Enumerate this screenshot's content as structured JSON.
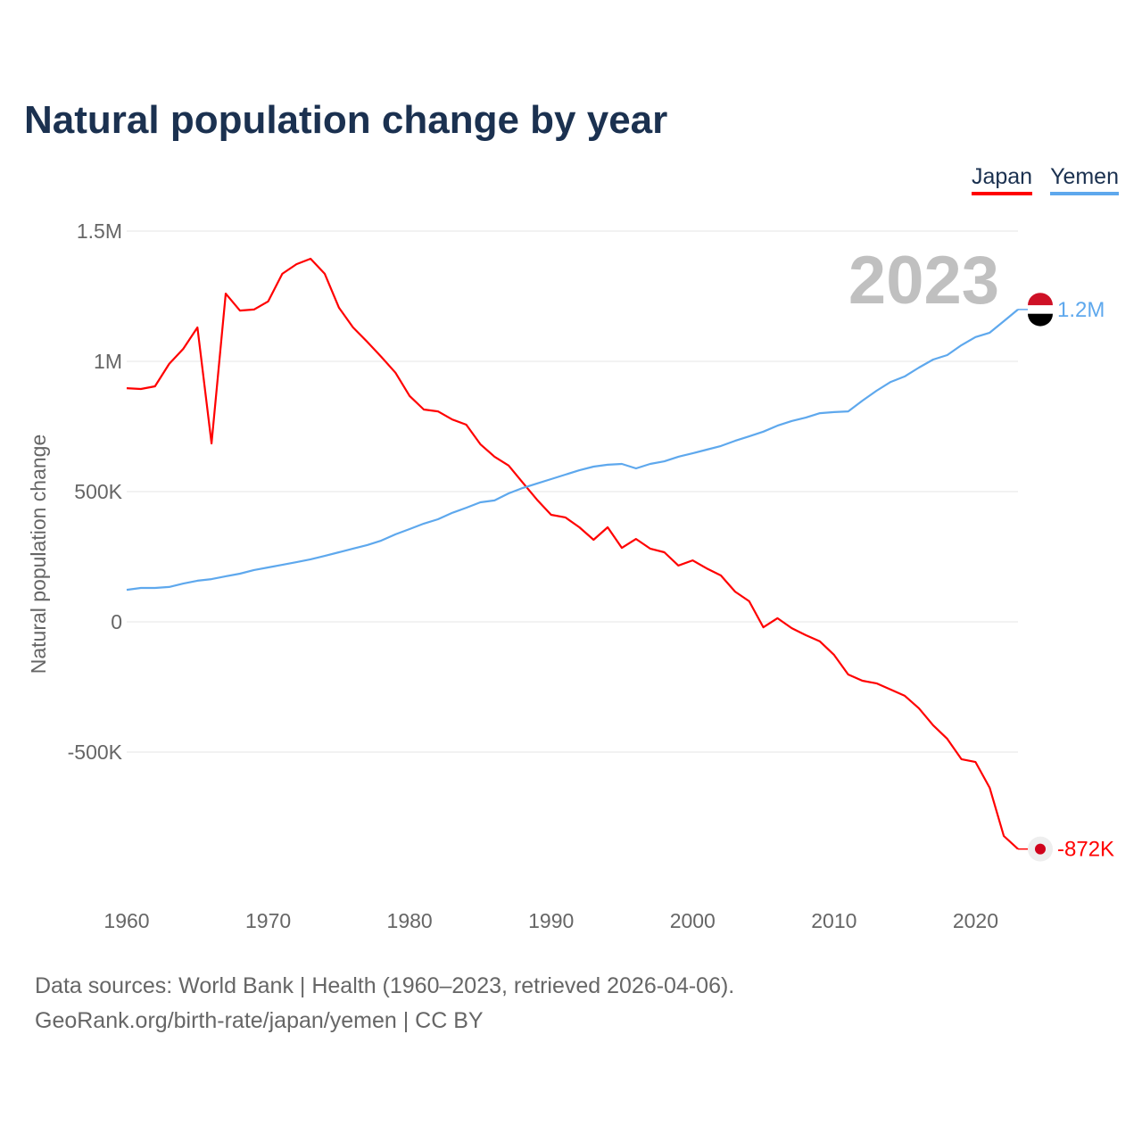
{
  "title": "Natural population change by year",
  "footer": {
    "line1": "Data sources: World Bank | Health (1960–2023, retrieved 2026-04-06).",
    "line2": "GeoRank.org/birth-rate/japan/yemen | CC BY"
  },
  "chart_data": {
    "type": "line",
    "title": "Natural population change by year",
    "xlabel": "",
    "ylabel": "Natural population change",
    "year_label": "2023",
    "xlim": [
      1960,
      2023
    ],
    "ylim": [
      -1000000,
      1500000
    ],
    "x_ticks": [
      1960,
      1970,
      1980,
      1990,
      2000,
      2010,
      2020
    ],
    "y_ticks": [
      {
        "value": 1500000,
        "label": "1.5M"
      },
      {
        "value": 1000000,
        "label": "1M"
      },
      {
        "value": 500000,
        "label": "500K"
      },
      {
        "value": 0,
        "label": "0"
      },
      {
        "value": -500000,
        "label": "-500K"
      }
    ],
    "grid": true,
    "legend_position": "top-right",
    "x_start": 1960,
    "series": [
      {
        "name": "Japan",
        "color": "#ff0000",
        "end_label": "-872K",
        "flag": "japan",
        "values": [
          897000,
          894000,
          904000,
          990000,
          1048000,
          1130000,
          685000,
          1260000,
          1195000,
          1199000,
          1230000,
          1336000,
          1373000,
          1394000,
          1336000,
          1206000,
          1130000,
          1075000,
          1017000,
          956000,
          867000,
          815000,
          808000,
          777000,
          757000,
          682000,
          634000,
          600000,
          534000,
          469000,
          411000,
          401000,
          363000,
          315000,
          363000,
          284000,
          318000,
          281000,
          267000,
          216000,
          236000,
          205000,
          178000,
          116000,
          79000,
          -21000,
          14000,
          -24000,
          -51000,
          -75000,
          -127000,
          -202000,
          -226000,
          -236000,
          -260000,
          -284000,
          -332000,
          -397000,
          -449000,
          -527000,
          -538000,
          -637000,
          -822000,
          -872000
        ]
      },
      {
        "name": "Yemen",
        "color": "#5ea8ed",
        "end_label": "1.2M",
        "flag": "yemen",
        "values": [
          123000,
          130000,
          130000,
          134000,
          147000,
          158000,
          164000,
          175000,
          185000,
          199000,
          209000,
          219000,
          229000,
          240000,
          253000,
          267000,
          281000,
          295000,
          312000,
          336000,
          356000,
          377000,
          394000,
          418000,
          438000,
          459000,
          466000,
          493000,
          514000,
          531000,
          548000,
          565000,
          582000,
          596000,
          603000,
          606000,
          589000,
          606000,
          616000,
          634000,
          647000,
          661000,
          675000,
          695000,
          712000,
          730000,
          753000,
          771000,
          784000,
          801000,
          805000,
          808000,
          849000,
          887000,
          921000,
          942000,
          976000,
          1007000,
          1024000,
          1062000,
          1093000,
          1110000,
          1154000,
          1199000
        ]
      }
    ]
  }
}
